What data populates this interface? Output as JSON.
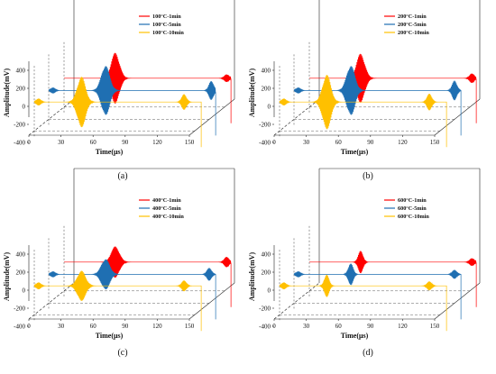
{
  "chart_data": [
    {
      "type": "line",
      "caption": "(a)",
      "xlabel": "Time(μs)",
      "ylabel": "Amplitude(mV)",
      "xticks": [
        "0",
        "30",
        "60",
        "90",
        "120",
        "150"
      ],
      "yticks": [
        "-400",
        "-200",
        "0",
        "200",
        "400"
      ],
      "xlim": [
        0,
        150
      ],
      "ylim": [
        -400,
        400
      ],
      "series": [
        {
          "name": "100°C-1min",
          "color": "#ff0000",
          "pulses": [
            {
              "t": 48,
              "amp": 520
            },
            {
              "t": 152,
              "amp": 80
            }
          ]
        },
        {
          "name": "100°C-5min",
          "color": "#1f6fb2",
          "pulses": [
            {
              "t": 4,
              "amp": 60
            },
            {
              "t": 53,
              "amp": 520
            },
            {
              "t": 152,
              "amp": 200
            }
          ]
        },
        {
          "name": "100°C-10min",
          "color": "#ffc000",
          "pulses": [
            {
              "t": 4,
              "amp": 70
            },
            {
              "t": 44,
              "amp": 520
            },
            {
              "t": 140,
              "amp": 160
            }
          ]
        }
      ]
    },
    {
      "type": "line",
      "caption": "(b)",
      "xlabel": "Time(μs)",
      "ylabel": "Amplitude(mV)",
      "xticks": [
        "0",
        "30",
        "60",
        "90",
        "120",
        "150"
      ],
      "yticks": [
        "-400",
        "-200",
        "0",
        "200",
        "400"
      ],
      "xlim": [
        0,
        150
      ],
      "ylim": [
        -400,
        400
      ],
      "series": [
        {
          "name": "200°C-1min",
          "color": "#ff0000",
          "pulses": [
            {
              "t": 48,
              "amp": 500
            },
            {
              "t": 152,
              "amp": 100
            }
          ]
        },
        {
          "name": "200°C-5min",
          "color": "#1f6fb2",
          "pulses": [
            {
              "t": 4,
              "amp": 60
            },
            {
              "t": 53,
              "amp": 520
            },
            {
              "t": 150,
              "amp": 200
            }
          ]
        },
        {
          "name": "200°C-10min",
          "color": "#ffc000",
          "pulses": [
            {
              "t": 4,
              "amp": 70
            },
            {
              "t": 44,
              "amp": 560
            },
            {
              "t": 140,
              "amp": 170
            }
          ]
        }
      ]
    },
    {
      "type": "line",
      "caption": "(c)",
      "xlabel": "Time(μs)",
      "ylabel": "Amplitude(mV)",
      "xticks": [
        "0",
        "30",
        "60",
        "90",
        "120",
        "150"
      ],
      "yticks": [
        "-400",
        "-200",
        "0",
        "200",
        "400"
      ],
      "xlim": [
        0,
        150
      ],
      "ylim": [
        -400,
        400
      ],
      "series": [
        {
          "name": "400°C-1min",
          "color": "#ff0000",
          "pulses": [
            {
              "t": 48,
              "amp": 320
            },
            {
              "t": 152,
              "amp": 110
            }
          ]
        },
        {
          "name": "400°C-5min",
          "color": "#1f6fb2",
          "pulses": [
            {
              "t": 4,
              "amp": 60
            },
            {
              "t": 53,
              "amp": 320
            },
            {
              "t": 150,
              "amp": 130
            }
          ]
        },
        {
          "name": "400°C-10min",
          "color": "#ffc000",
          "pulses": [
            {
              "t": 4,
              "amp": 70
            },
            {
              "t": 44,
              "amp": 310
            },
            {
              "t": 140,
              "amp": 110
            }
          ]
        }
      ]
    },
    {
      "type": "line",
      "caption": "(d)",
      "xlabel": "Time(μs)",
      "ylabel": "Amplitude(mV)",
      "xticks": [
        "0",
        "30",
        "60",
        "90",
        "120",
        "150"
      ],
      "yticks": [
        "-400",
        "-200",
        "0",
        "200",
        "400"
      ],
      "xlim": [
        0,
        150
      ],
      "ylim": [
        -400,
        400
      ],
      "series": [
        {
          "name": "600°C-1min",
          "color": "#ff0000",
          "pulses": [
            {
              "t": 48,
              "amp": 230
            },
            {
              "t": 152,
              "amp": 80
            }
          ]
        },
        {
          "name": "600°C-5min",
          "color": "#1f6fb2",
          "pulses": [
            {
              "t": 4,
              "amp": 60
            },
            {
              "t": 53,
              "amp": 230
            },
            {
              "t": 150,
              "amp": 90
            }
          ]
        },
        {
          "name": "600°C-10min",
          "color": "#ffc000",
          "pulses": [
            {
              "t": 4,
              "amp": 70
            },
            {
              "t": 44,
              "amp": 230
            },
            {
              "t": 140,
              "amp": 90
            }
          ]
        }
      ]
    }
  ]
}
